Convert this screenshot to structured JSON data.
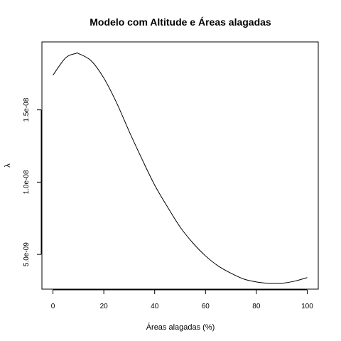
{
  "chart_data": {
    "type": "line",
    "title": "Modelo com Altitude e Áreas alagadas",
    "xlabel": "Áreas alagadas (%)",
    "ylabel": "λ",
    "xlim": [
      0,
      100
    ],
    "ylim": [
      2.6e-09,
      1.97e-08
    ],
    "x_ticks": [
      {
        "value": 0,
        "label": "0"
      },
      {
        "value": 20,
        "label": "20"
      },
      {
        "value": 40,
        "label": "40"
      },
      {
        "value": 60,
        "label": "60"
      },
      {
        "value": 80,
        "label": "80"
      },
      {
        "value": 100,
        "label": "100"
      }
    ],
    "y_ticks": [
      {
        "value": 5e-09,
        "label": "5.0e-09"
      },
      {
        "value": 1e-08,
        "label": "1.0e-08"
      },
      {
        "value": 1.5e-08,
        "label": "1.5e-08"
      }
    ],
    "series": [
      {
        "color": "#000000",
        "x": [
          0,
          5,
          9,
          10,
          15,
          20,
          25,
          30,
          35,
          40,
          45,
          50,
          55,
          60,
          65,
          70,
          75,
          80,
          85,
          88,
          90,
          95,
          100
        ],
        "y": [
          1.74e-08,
          1.86e-08,
          1.89e-08,
          1.89e-08,
          1.84e-08,
          1.72e-08,
          1.55e-08,
          1.35e-08,
          1.16e-08,
          9.8e-09,
          8.3e-09,
          6.9e-09,
          5.8e-09,
          4.9e-09,
          4.2e-09,
          3.7e-09,
          3.3e-09,
          3.1e-09,
          3e-09,
          3e-09,
          3e-09,
          3.15e-09,
          3.4e-09
        ]
      }
    ]
  }
}
